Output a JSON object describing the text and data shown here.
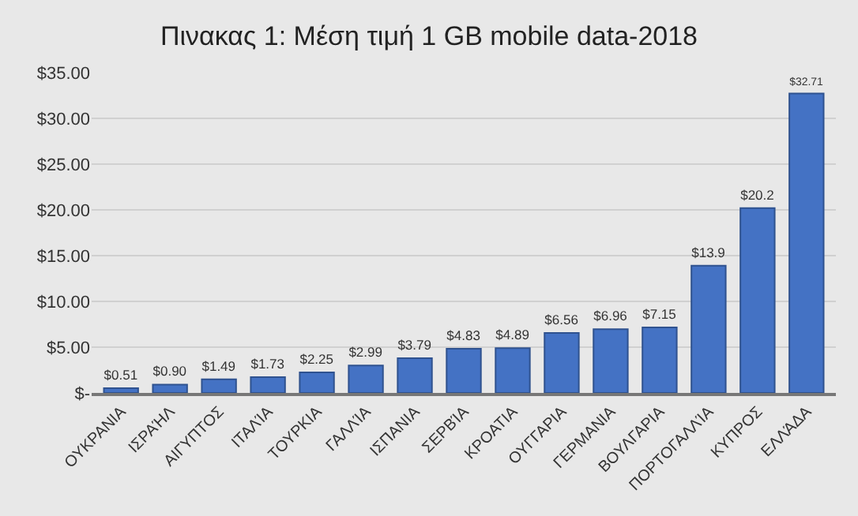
{
  "chart_data": {
    "type": "bar",
    "title": "Πινακας 1: Μέση τιμή 1 GB mobile data-2018",
    "categories": [
      "ΟΥΚΡΑΝΙΑ",
      "ΙΣΡΑΉΛ",
      "ΑΙΓΥΠΤΟΣ",
      "ΙΤΑΛΊΑ",
      "ΤΟΥΡΚΙΑ",
      "ΓΑΛΛΊΑ",
      "ΙΣΠΑΝΙΑ",
      "ΣΕΡΒΊΑ",
      "ΚΡΟΑΤΙΑ",
      "ΟΥΓΓΑΡΙΑ",
      "ΓΕΡΜΑΝΙΑ",
      "ΒΟΥΛΓΑΡΙΑ",
      "ΠΟΡΤΟΓΑΛΛΊΑ",
      "ΚΥΠΡΟΣ",
      "ΕΛΛΆΔΑ"
    ],
    "values": [
      0.51,
      0.9,
      1.49,
      1.73,
      2.25,
      2.99,
      3.79,
      4.83,
      4.89,
      6.56,
      6.96,
      7.15,
      13.9,
      20.2,
      32.71
    ],
    "value_labels": [
      "$0.51",
      "$0.90",
      "$1.49",
      "$1.73",
      "$2.25",
      "$2.99",
      "$3.79",
      "$4.83",
      "$4.89",
      "$6.56",
      "$6.96",
      "$7.15",
      "$13.9",
      "$20.2",
      "$32.71"
    ],
    "color": "#4472c4",
    "ylim": [
      0,
      35
    ],
    "yticks": [
      {
        "value": 0,
        "label": "$-"
      },
      {
        "value": 5,
        "label": "$5.00"
      },
      {
        "value": 10,
        "label": "$10.00"
      },
      {
        "value": 15,
        "label": "$15.00"
      },
      {
        "value": 20,
        "label": "$20.00"
      },
      {
        "value": 25,
        "label": "$25.00"
      },
      {
        "value": 30,
        "label": "$30.00"
      },
      {
        "value": 35,
        "label": "$35.00"
      }
    ],
    "grid": "y"
  }
}
